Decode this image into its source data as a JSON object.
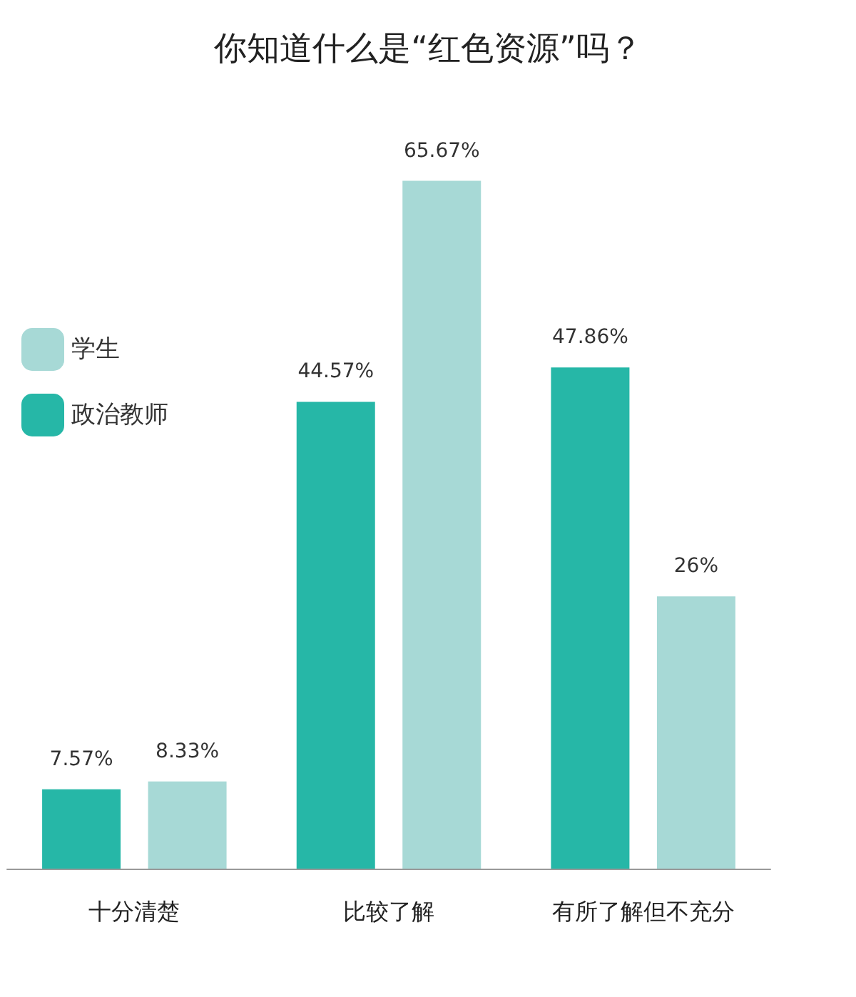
{
  "chart_data": {
    "type": "bar",
    "title": "你知道什么是“红色资源”吗？",
    "categories": [
      "十分清楚",
      "比较了解",
      "有所了解但不充分"
    ],
    "series": [
      {
        "name": "政治教师",
        "color": "#26b7a7",
        "values": [
          7.57,
          44.57,
          47.86
        ],
        "value_labels": [
          "7.57%",
          "44.57%",
          "47.86%"
        ]
      },
      {
        "name": "学生",
        "color": "#a7d9d6",
        "values": [
          8.33,
          65.67,
          26
        ],
        "value_labels": [
          "8.33%",
          "65.67%",
          "26%"
        ]
      }
    ],
    "legend": "left",
    "grid": false
  }
}
